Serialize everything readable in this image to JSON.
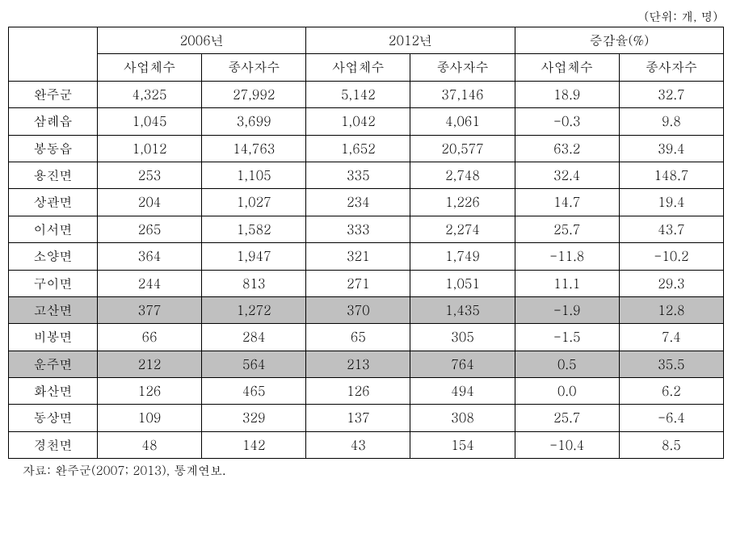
{
  "unit_note": "(단위: 개, 명)",
  "header": {
    "group1": "2006년",
    "group2": "2012년",
    "group3": "증감율(%)",
    "sub_biz": "사업체수",
    "sub_emp": "종사자수"
  },
  "rows": [
    {
      "label": "완주군",
      "b2006": "4,325",
      "e2006": "27,992",
      "b2012": "5,142",
      "e2012": "37,146",
      "pb": "18.9",
      "pe": "32.7",
      "hl": false
    },
    {
      "label": "삼례읍",
      "b2006": "1,045",
      "e2006": "3,699",
      "b2012": "1,042",
      "e2012": "4,061",
      "pb": "-0.3",
      "pe": "9.8",
      "hl": false
    },
    {
      "label": "봉동읍",
      "b2006": "1,012",
      "e2006": "14,763",
      "b2012": "1,652",
      "e2012": "20,577",
      "pb": "63.2",
      "pe": "39.4",
      "hl": false
    },
    {
      "label": "용진면",
      "b2006": "253",
      "e2006": "1,105",
      "b2012": "335",
      "e2012": "2,748",
      "pb": "32.4",
      "pe": "148.7",
      "hl": false
    },
    {
      "label": "상관면",
      "b2006": "204",
      "e2006": "1,027",
      "b2012": "234",
      "e2012": "1,226",
      "pb": "14.7",
      "pe": "19.4",
      "hl": false
    },
    {
      "label": "이서면",
      "b2006": "265",
      "e2006": "1,582",
      "b2012": "333",
      "e2012": "2,274",
      "pb": "25.7",
      "pe": "43.7",
      "hl": false
    },
    {
      "label": "소양면",
      "b2006": "364",
      "e2006": "1,947",
      "b2012": "321",
      "e2012": "1,749",
      "pb": "-11.8",
      "pe": "-10.2",
      "hl": false
    },
    {
      "label": "구이면",
      "b2006": "244",
      "e2006": "813",
      "b2012": "271",
      "e2012": "1,051",
      "pb": "11.1",
      "pe": "29.3",
      "hl": false
    },
    {
      "label": "고산면",
      "b2006": "377",
      "e2006": "1,272",
      "b2012": "370",
      "e2012": "1,435",
      "pb": "-1.9",
      "pe": "12.8",
      "hl": true
    },
    {
      "label": "비봉면",
      "b2006": "66",
      "e2006": "284",
      "b2012": "65",
      "e2012": "305",
      "pb": "-1.5",
      "pe": "7.4",
      "hl": false
    },
    {
      "label": "운주면",
      "b2006": "212",
      "e2006": "564",
      "b2012": "213",
      "e2012": "764",
      "pb": "0.5",
      "pe": "35.5",
      "hl": true
    },
    {
      "label": "화산면",
      "b2006": "126",
      "e2006": "465",
      "b2012": "126",
      "e2012": "494",
      "pb": "0.0",
      "pe": "6.2",
      "hl": false
    },
    {
      "label": "동상면",
      "b2006": "109",
      "e2006": "329",
      "b2012": "137",
      "e2012": "308",
      "pb": "25.7",
      "pe": "-6.4",
      "hl": false
    },
    {
      "label": "경천면",
      "b2006": "48",
      "e2006": "142",
      "b2012": "43",
      "e2012": "154",
      "pb": "-10.4",
      "pe": "8.5",
      "hl": false
    }
  ],
  "source": "자료: 완주군(2007; 2013), 통계연보.",
  "style": {
    "highlight_bg": "#c0c0c0",
    "border_color": "#000000",
    "font_family": "Batang",
    "cell_fontsize": 16
  }
}
